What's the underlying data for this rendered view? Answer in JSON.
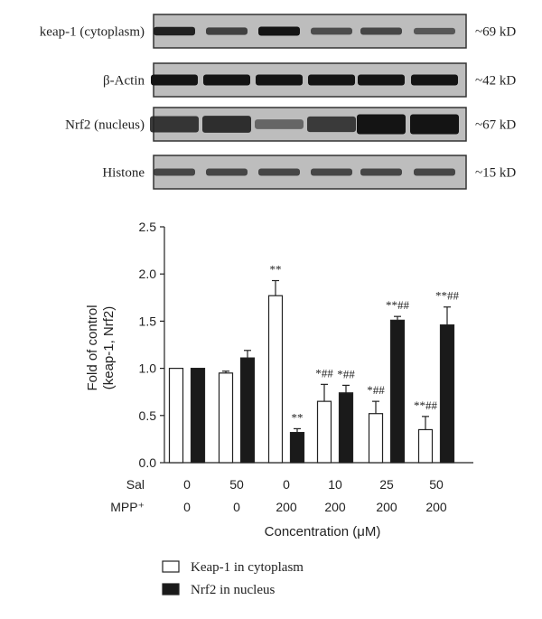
{
  "blots": {
    "rows": [
      {
        "label": "keap-1 (cytoplasm)",
        "mw": "~69 kD",
        "style": "thin"
      },
      {
        "label": "β-Actin",
        "mw": "~42 kD",
        "style": "thick"
      },
      {
        "label": "Nrf2 (nucleus)",
        "mw": "~67 kD",
        "style": "nrf2"
      },
      {
        "label": "Histone",
        "mw": "~15 kD",
        "style": "thin"
      }
    ],
    "band_intensity": [
      [
        0.9,
        0.65,
        1.0,
        0.55,
        0.6,
        0.45
      ],
      [
        1.0,
        1.0,
        1.0,
        1.0,
        1.0,
        1.0
      ],
      [
        0.75,
        0.8,
        0.3,
        0.7,
        1.0,
        1.0
      ],
      [
        0.6,
        0.6,
        0.6,
        0.6,
        0.6,
        0.6
      ]
    ]
  },
  "chart_data": {
    "type": "bar",
    "ylabel_line1": "Fold of control",
    "ylabel_line2": "(keap-1, Nrf2)",
    "xlabel": "Concentration (μM)",
    "ylim": [
      0,
      2.5
    ],
    "yticks": [
      "0.0",
      "0.5",
      "1.0",
      "1.5",
      "2.0",
      "2.5"
    ],
    "conditions": {
      "rows": [
        {
          "name": "Sal",
          "values": [
            "0",
            "50",
            "0",
            "10",
            "25",
            "50"
          ]
        },
        {
          "name": "MPP⁺",
          "values": [
            "0",
            "0",
            "200",
            "200",
            "200",
            "200"
          ]
        }
      ]
    },
    "series": [
      {
        "name": "Keap-1 in cytoplasm",
        "fill": "#ffffff",
        "values": [
          1.0,
          0.95,
          1.77,
          0.65,
          0.52,
          0.35
        ],
        "errors": [
          0.0,
          0.02,
          0.16,
          0.18,
          0.13,
          0.14
        ],
        "labels": [
          "",
          "",
          "**",
          "*##",
          "*##",
          "**##"
        ]
      },
      {
        "name": "Nrf2 in nucleus",
        "fill": "#1a1a1a",
        "values": [
          1.0,
          1.11,
          0.32,
          0.74,
          1.51,
          1.46
        ],
        "errors": [
          0.0,
          0.08,
          0.04,
          0.08,
          0.04,
          0.19
        ],
        "labels": [
          "",
          "",
          "**",
          "*##",
          "**##",
          "**##"
        ]
      }
    ]
  }
}
